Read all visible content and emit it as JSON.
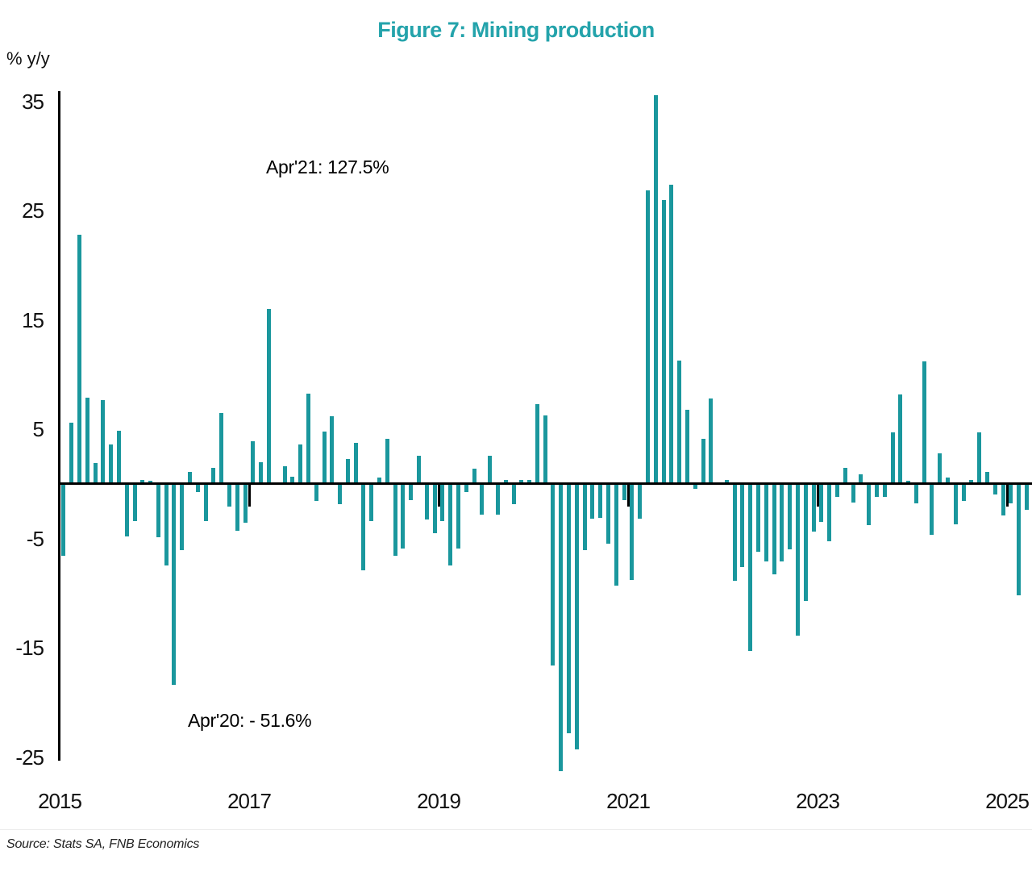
{
  "title": "Figure 7: Mining production",
  "y_axis_unit_label": "% y/y",
  "source": "Source: Stats SA, FNB Economics",
  "annotations": {
    "apr21": "Apr'21: 127.5%",
    "apr20": "Apr'20:  - 51.6%"
  },
  "colors": {
    "bar": "#1A979D",
    "title": "#24A3AB",
    "axis": "#000000",
    "text": "#111111"
  },
  "chart_data": {
    "type": "bar",
    "title": "Figure 7: Mining production",
    "ylabel": "% y/y",
    "xlabel": "",
    "frequency": "monthly",
    "start_month": "2015-01",
    "end_month": "2025-03",
    "grid": false,
    "legend": "none",
    "y_ticks": [
      35,
      25,
      15,
      5,
      -5,
      -15,
      -25
    ],
    "ylim_drawn": [
      -26.2,
      35.6
    ],
    "x_tick_labels": [
      "2015",
      "2017",
      "2019",
      "2021",
      "2023",
      "2025"
    ],
    "annotations": [
      {
        "text": "Apr'21: 127.5%",
        "refers_to": "2021-04",
        "true_value": 127.5
      },
      {
        "text": "Apr'20:  - 51.6%",
        "refers_to": "2020-04",
        "true_value": -51.6
      }
    ],
    "notes": [
      "Apr 2020 bar (-51.6%) is clipped at the bottom of the plot (~-26)",
      "Apr 2021 bar (+127.5%) is clipped at the top of the plot (~+35.5)"
    ],
    "values": [
      -6.5,
      5.6,
      22.8,
      7.9,
      1.9,
      7.7,
      3.6,
      4.9,
      -4.7,
      -3.3,
      0.4,
      0.3,
      -4.8,
      -7.4,
      -18.3,
      -6.0,
      1.1,
      -0.7,
      -3.3,
      1.5,
      6.5,
      -2.0,
      -4.2,
      -3.5,
      3.9,
      2.0,
      16.0,
      0.0,
      1.6,
      0.7,
      3.6,
      8.3,
      -1.5,
      4.8,
      6.2,
      -1.8,
      2.3,
      3.8,
      -7.8,
      -3.3,
      0.6,
      4.1,
      -6.5,
      -5.8,
      -1.4,
      2.6,
      -3.2,
      -4.4,
      -3.3,
      -7.4,
      -5.8,
      -0.7,
      1.4,
      -2.7,
      2.6,
      -2.7,
      0.4,
      -1.8,
      0.4,
      0.4,
      7.3,
      6.3,
      -16.5,
      -51.6,
      -22.7,
      -24.2,
      -6.0,
      -3.1,
      -3.0,
      -5.4,
      -9.2,
      -1.4,
      -8.7,
      -3.1,
      26.9,
      127.5,
      26.0,
      27.4,
      11.3,
      6.8,
      -0.4,
      4.1,
      7.8,
      0.0,
      0.4,
      -8.8,
      -7.5,
      -15.2,
      -6.1,
      -7.0,
      -8.2,
      -7.0,
      -5.9,
      -13.8,
      -10.6,
      -4.3,
      -3.4,
      -5.2,
      -1.1,
      1.5,
      -1.6,
      0.9,
      -3.7,
      -1.1,
      -1.1,
      4.7,
      8.2,
      0.3,
      -1.7,
      11.2,
      -4.6,
      2.8,
      0.6,
      -3.6,
      -1.5,
      0.4,
      4.7,
      1.1,
      -0.9,
      -2.8,
      -1.7,
      -10.1,
      -2.3
    ]
  }
}
